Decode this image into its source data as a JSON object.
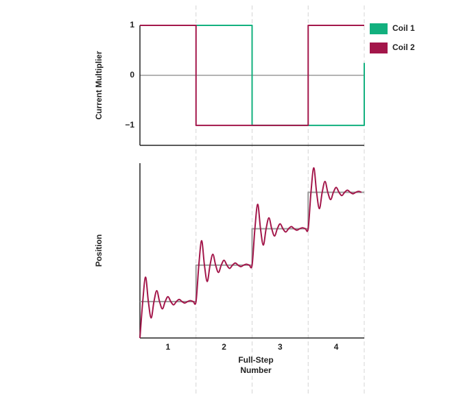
{
  "chart_data": [
    {
      "type": "line",
      "ylabel": "Current Multiplier",
      "xlim": [
        0.5,
        4.5
      ],
      "ylim": [
        -1.4,
        1
      ],
      "yticks": [
        1,
        0,
        {
          "value": -1,
          "label": "−1"
        }
      ],
      "zero_line": true,
      "legend": "top-right",
      "step_boundaries": [
        1.5,
        2.5,
        3.5,
        4.5
      ],
      "series": [
        {
          "name": "Coil 1",
          "color": "#12b07e",
          "x": [
            0.5,
            2.5,
            2.5,
            4.5,
            4.5
          ],
          "values": [
            1,
            1,
            -1,
            -1,
            0.25
          ]
        },
        {
          "name": "Coil 2",
          "color": "#a3164a",
          "x": [
            0.5,
            1.5,
            1.5,
            3.5,
            3.5,
            4.5
          ],
          "values": [
            1,
            1,
            -1,
            -1,
            1,
            1
          ]
        }
      ]
    },
    {
      "type": "line",
      "ylabel": "Position",
      "xlabel": "Full-Step Number",
      "xlim": [
        0.5,
        4.5
      ],
      "ylim": [
        0,
        4.8
      ],
      "xticks": [
        1,
        2,
        3,
        4
      ],
      "series": [
        {
          "color": "#999999",
          "x": [
            0.5,
            1.5,
            1.5,
            2.5,
            2.5,
            3.5,
            3.5,
            4.5
          ],
          "values": [
            1,
            1,
            2,
            2,
            3,
            3,
            4,
            4
          ]
        },
        {
          "color": "#a3164a",
          "smooth": true,
          "x": [
            0.5,
            0.55,
            0.6,
            0.65,
            0.7,
            0.75,
            0.8,
            0.85,
            0.9,
            0.95,
            1,
            1.05,
            1.1,
            1.15,
            1.2,
            1.25,
            1.3,
            1.35,
            1.4,
            1.45,
            1.5,
            1.55,
            1.6,
            1.65,
            1.7,
            1.75,
            1.8,
            1.85,
            1.9,
            1.95,
            2,
            2.05,
            2.1,
            2.15,
            2.2,
            2.25,
            2.3,
            2.35,
            2.4,
            2.45,
            2.5,
            2.55,
            2.6,
            2.65,
            2.7,
            2.75,
            2.8,
            2.85,
            2.9,
            2.95,
            3,
            3.05,
            3.1,
            3.15,
            3.2,
            3.25,
            3.3,
            3.35,
            3.4,
            3.45,
            3.5,
            3.55,
            3.6,
            3.65,
            3.7,
            3.75,
            3.8,
            3.85,
            3.9,
            3.95,
            4,
            4.05,
            4.1,
            4.15,
            4.2,
            4.25,
            4.3,
            4.35,
            4.4,
            4.45
          ],
          "values": [
            0,
            1,
            1.67,
            1,
            0.55,
            1,
            1.3,
            1,
            0.8,
            1,
            1.135,
            1,
            0.91,
            1,
            1.06,
            1,
            0.96,
            1,
            1.027,
            1,
            1,
            2,
            2.67,
            2,
            1.55,
            2,
            2.3,
            2,
            1.8,
            2,
            2.135,
            2,
            1.91,
            2,
            2.06,
            2,
            1.96,
            2,
            2.027,
            2,
            2,
            3,
            3.67,
            3,
            2.55,
            3,
            3.3,
            3,
            2.8,
            3,
            3.135,
            3,
            2.91,
            3,
            3.06,
            3,
            2.96,
            3,
            3.027,
            3,
            3,
            4,
            4.67,
            4,
            3.55,
            4,
            4.3,
            4,
            3.8,
            4,
            4.135,
            4,
            3.91,
            4,
            4.06,
            4,
            3.96,
            4,
            4.027,
            4
          ]
        }
      ]
    }
  ]
}
